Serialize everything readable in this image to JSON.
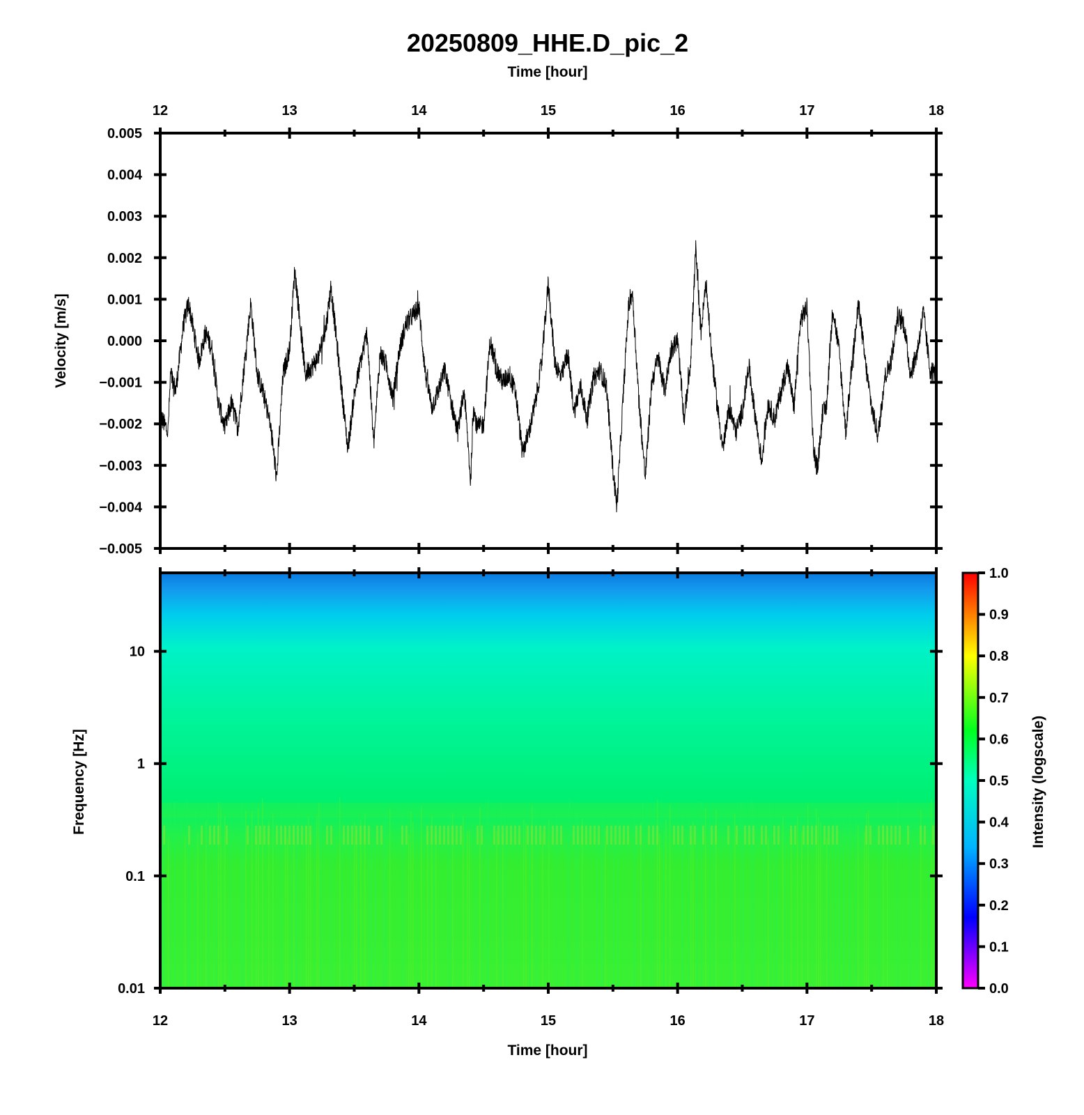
{
  "title": "20250809_HHE.D_pic_2",
  "top_axis_label": "Time [hour]",
  "bottom_axis_label": "Time [hour]",
  "colors": {
    "trace": "#000000",
    "frame": "#000000"
  },
  "chart_data": [
    {
      "type": "line",
      "xlabel": "Time [hour]",
      "ylabel": "Velocity [m/s]",
      "xlim": [
        12,
        18
      ],
      "ylim": [
        -0.005,
        0.005
      ],
      "x_ticks": [
        "12",
        "13",
        "14",
        "15",
        "16",
        "17",
        "18"
      ],
      "y_ticks": [
        "0.005",
        "0.004",
        "0.003",
        "0.002",
        "0.001",
        "0.000",
        "−0.001",
        "−0.002",
        "−0.003",
        "−0.004",
        "−0.005"
      ],
      "grid": false,
      "series": [
        {
          "x": [
            12.0,
            12.06,
            12.08,
            12.12,
            12.18,
            12.22,
            12.3,
            12.35,
            12.4,
            12.45,
            12.5,
            12.55,
            12.6,
            12.65,
            12.7,
            12.75,
            12.8,
            12.85,
            12.9,
            12.95,
            13.0,
            13.04,
            13.08,
            13.12,
            13.18,
            13.22,
            13.28,
            13.32,
            13.38,
            13.45,
            13.5,
            13.55,
            13.6,
            13.65,
            13.7,
            13.75,
            13.8,
            13.85,
            13.9,
            14.0,
            14.05,
            14.1,
            14.15,
            14.2,
            14.25,
            14.3,
            14.35,
            14.4,
            14.42,
            14.45,
            14.5,
            14.55,
            14.6,
            14.65,
            14.7,
            14.75,
            14.8,
            14.85,
            14.9,
            14.95,
            15.0,
            15.05,
            15.1,
            15.15,
            15.2,
            15.25,
            15.3,
            15.35,
            15.4,
            15.45,
            15.5,
            15.53,
            15.58,
            15.62,
            15.65,
            15.7,
            15.75,
            15.8,
            15.85,
            15.9,
            15.95,
            16.0,
            16.05,
            16.1,
            16.14,
            16.18,
            16.22,
            16.26,
            16.3,
            16.35,
            16.4,
            16.45,
            16.5,
            16.55,
            16.6,
            16.65,
            16.7,
            16.75,
            16.8,
            16.85,
            16.9,
            16.95,
            17.0,
            17.05,
            17.08,
            17.12,
            17.15,
            17.2,
            17.25,
            17.3,
            17.35,
            17.4,
            17.45,
            17.5,
            17.55,
            17.6,
            17.65,
            17.7,
            17.75,
            17.8,
            17.85,
            17.9,
            17.95,
            18.0
          ],
          "values": [
            -0.0018,
            -0.0022,
            -0.0008,
            -0.0012,
            0.0004,
            0.0009,
            -0.0005,
            0.0002,
            -0.0002,
            -0.0015,
            -0.0021,
            -0.0015,
            -0.0021,
            -0.0006,
            0.0009,
            -0.0008,
            -0.0013,
            -0.002,
            -0.0033,
            -0.0008,
            -0.0002,
            0.0017,
            0.0005,
            -0.0008,
            -0.0006,
            -0.0004,
            0.0003,
            0.0013,
            -0.0005,
            -0.0026,
            -0.0013,
            -0.0005,
            0.0002,
            -0.0025,
            -0.0003,
            -0.0006,
            -0.0014,
            -0.0002,
            0.0004,
            0.0008,
            -0.0008,
            -0.0016,
            -0.0012,
            -0.0007,
            -0.0015,
            -0.0022,
            -0.0012,
            -0.0034,
            -0.0016,
            -0.0021,
            -0.002,
            0.0,
            -0.0007,
            -0.001,
            -0.0008,
            -0.0013,
            -0.0027,
            -0.0022,
            -0.0015,
            -0.0005,
            0.0014,
            -0.0005,
            -0.0009,
            -0.0003,
            -0.0017,
            -0.0011,
            -0.0019,
            -0.0009,
            -0.0007,
            -0.0011,
            -0.0031,
            -0.004,
            -0.0013,
            0.0008,
            0.0012,
            -0.0014,
            -0.0033,
            -0.001,
            -0.0004,
            -0.0012,
            -0.0002,
            0.0,
            -0.0019,
            -0.0005,
            0.0022,
            0.0002,
            0.0014,
            -0.0002,
            -0.0014,
            -0.0026,
            -0.0016,
            -0.0022,
            -0.0017,
            -0.0006,
            -0.0018,
            -0.0029,
            -0.0015,
            -0.0019,
            -0.0012,
            -0.0006,
            -0.0016,
            0.0005,
            0.0008,
            -0.0026,
            -0.0031,
            -0.0018,
            -0.0016,
            0.0008,
            -0.0003,
            -0.0022,
            -0.0005,
            0.0009,
            -0.0005,
            -0.0016,
            -0.0023,
            -0.0009,
            -0.0005,
            0.0006,
            0.0004,
            -0.0008,
            -0.0003,
            0.0007,
            -0.0007,
            -0.0008
          ]
        }
      ]
    },
    {
      "type": "heatmap",
      "xlabel": "Time [hour]",
      "ylabel": "Frequency [Hz]",
      "xlim": [
        12,
        18
      ],
      "ylim": [
        0.01,
        50
      ],
      "y_scale": "log",
      "x_ticks": [
        "12",
        "13",
        "14",
        "15",
        "16",
        "17",
        "18"
      ],
      "y_ticks": [
        "10",
        "1",
        "0.1",
        "0.01"
      ],
      "colorbar": {
        "label": "Intensity (logscale)",
        "range": [
          0.0,
          1.0
        ],
        "ticks": [
          "1.0",
          "0.9",
          "0.8",
          "0.7",
          "0.6",
          "0.5",
          "0.4",
          "0.3",
          "0.2",
          "0.1",
          "0.0"
        ],
        "colormap": [
          "#ff00ff",
          "#0000ff",
          "#00c0ff",
          "#00ffbf",
          "#00ff20",
          "#ffff00",
          "#ff0000"
        ]
      },
      "intensity_by_frequency": {
        "frequency_hz": [
          50,
          30,
          15,
          10,
          1,
          0.25,
          0.01
        ],
        "intensity": [
          0.36,
          0.41,
          0.45,
          0.47,
          0.52,
          0.57,
          0.56
        ]
      }
    }
  ]
}
